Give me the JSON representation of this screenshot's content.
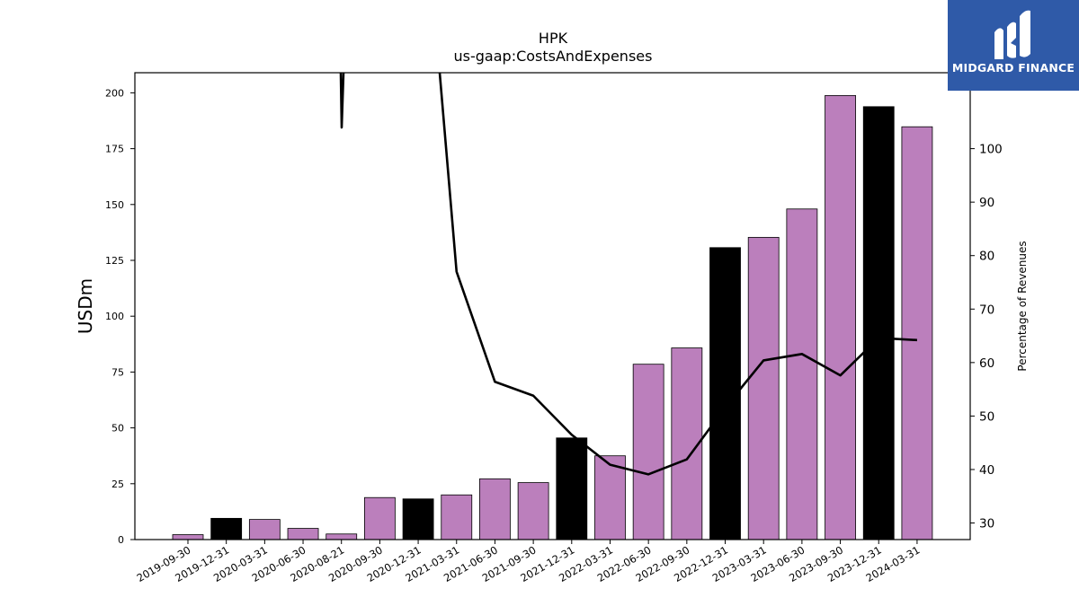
{
  "brand": {
    "name": "MIDGARD FINANCE",
    "color": "#2f5aa8"
  },
  "chart_data": {
    "type": "bar",
    "title": "HPK",
    "subtitle": "us-gaap:CostsAndExpenses",
    "ylabel": "USDm",
    "y2label": "Percentage of Revenues",
    "ylim": [
      0,
      209
    ],
    "y2lim": [
      26.9,
      114.2
    ],
    "yticks": [
      0,
      25,
      50,
      75,
      100,
      125,
      150,
      175,
      200
    ],
    "y2ticks": [
      30,
      40,
      50,
      60,
      70,
      80,
      90,
      100
    ],
    "categories": [
      "2019-09-30",
      "2019-12-31",
      "2020-03-31",
      "2020-06-30",
      "2020-08-21",
      "2020-09-30",
      "2020-12-31",
      "2021-03-31",
      "2021-06-30",
      "2021-09-30",
      "2021-12-31",
      "2022-03-31",
      "2022-06-30",
      "2022-09-30",
      "2022-12-31",
      "2023-03-31",
      "2023-06-30",
      "2023-09-30",
      "2023-12-31",
      "2024-03-31"
    ],
    "series": [
      {
        "kind": "bar",
        "axis": "left",
        "values": [
          2.2,
          9.5,
          9.0,
          5.0,
          2.5,
          18.8,
          18.2,
          20.0,
          27.2,
          25.5,
          45.5,
          37.5,
          78.5,
          85.8,
          130.7,
          135.3,
          148.0,
          198.8,
          193.8,
          184.8
        ],
        "colors": [
          "#bb7fbc",
          "#000000",
          "#bb7fbc",
          "#bb7fbc",
          "#bb7fbc",
          "#bb7fbc",
          "#000000",
          "#bb7fbc",
          "#bb7fbc",
          "#bb7fbc",
          "#000000",
          "#bb7fbc",
          "#bb7fbc",
          "#bb7fbc",
          "#000000",
          "#bb7fbc",
          "#bb7fbc",
          "#bb7fbc",
          "#000000",
          "#bb7fbc"
        ]
      },
      {
        "kind": "line",
        "axis": "right",
        "values": [
          null,
          null,
          null,
          null,
          null,
          null,
          null,
          77.0,
          56.4,
          53.8,
          46.5,
          40.9,
          39.1,
          41.9,
          51.6,
          60.4,
          61.6,
          57.6,
          64.6,
          64.2
        ],
        "color": "#000000"
      }
    ],
    "grid": false,
    "legend": "none"
  }
}
